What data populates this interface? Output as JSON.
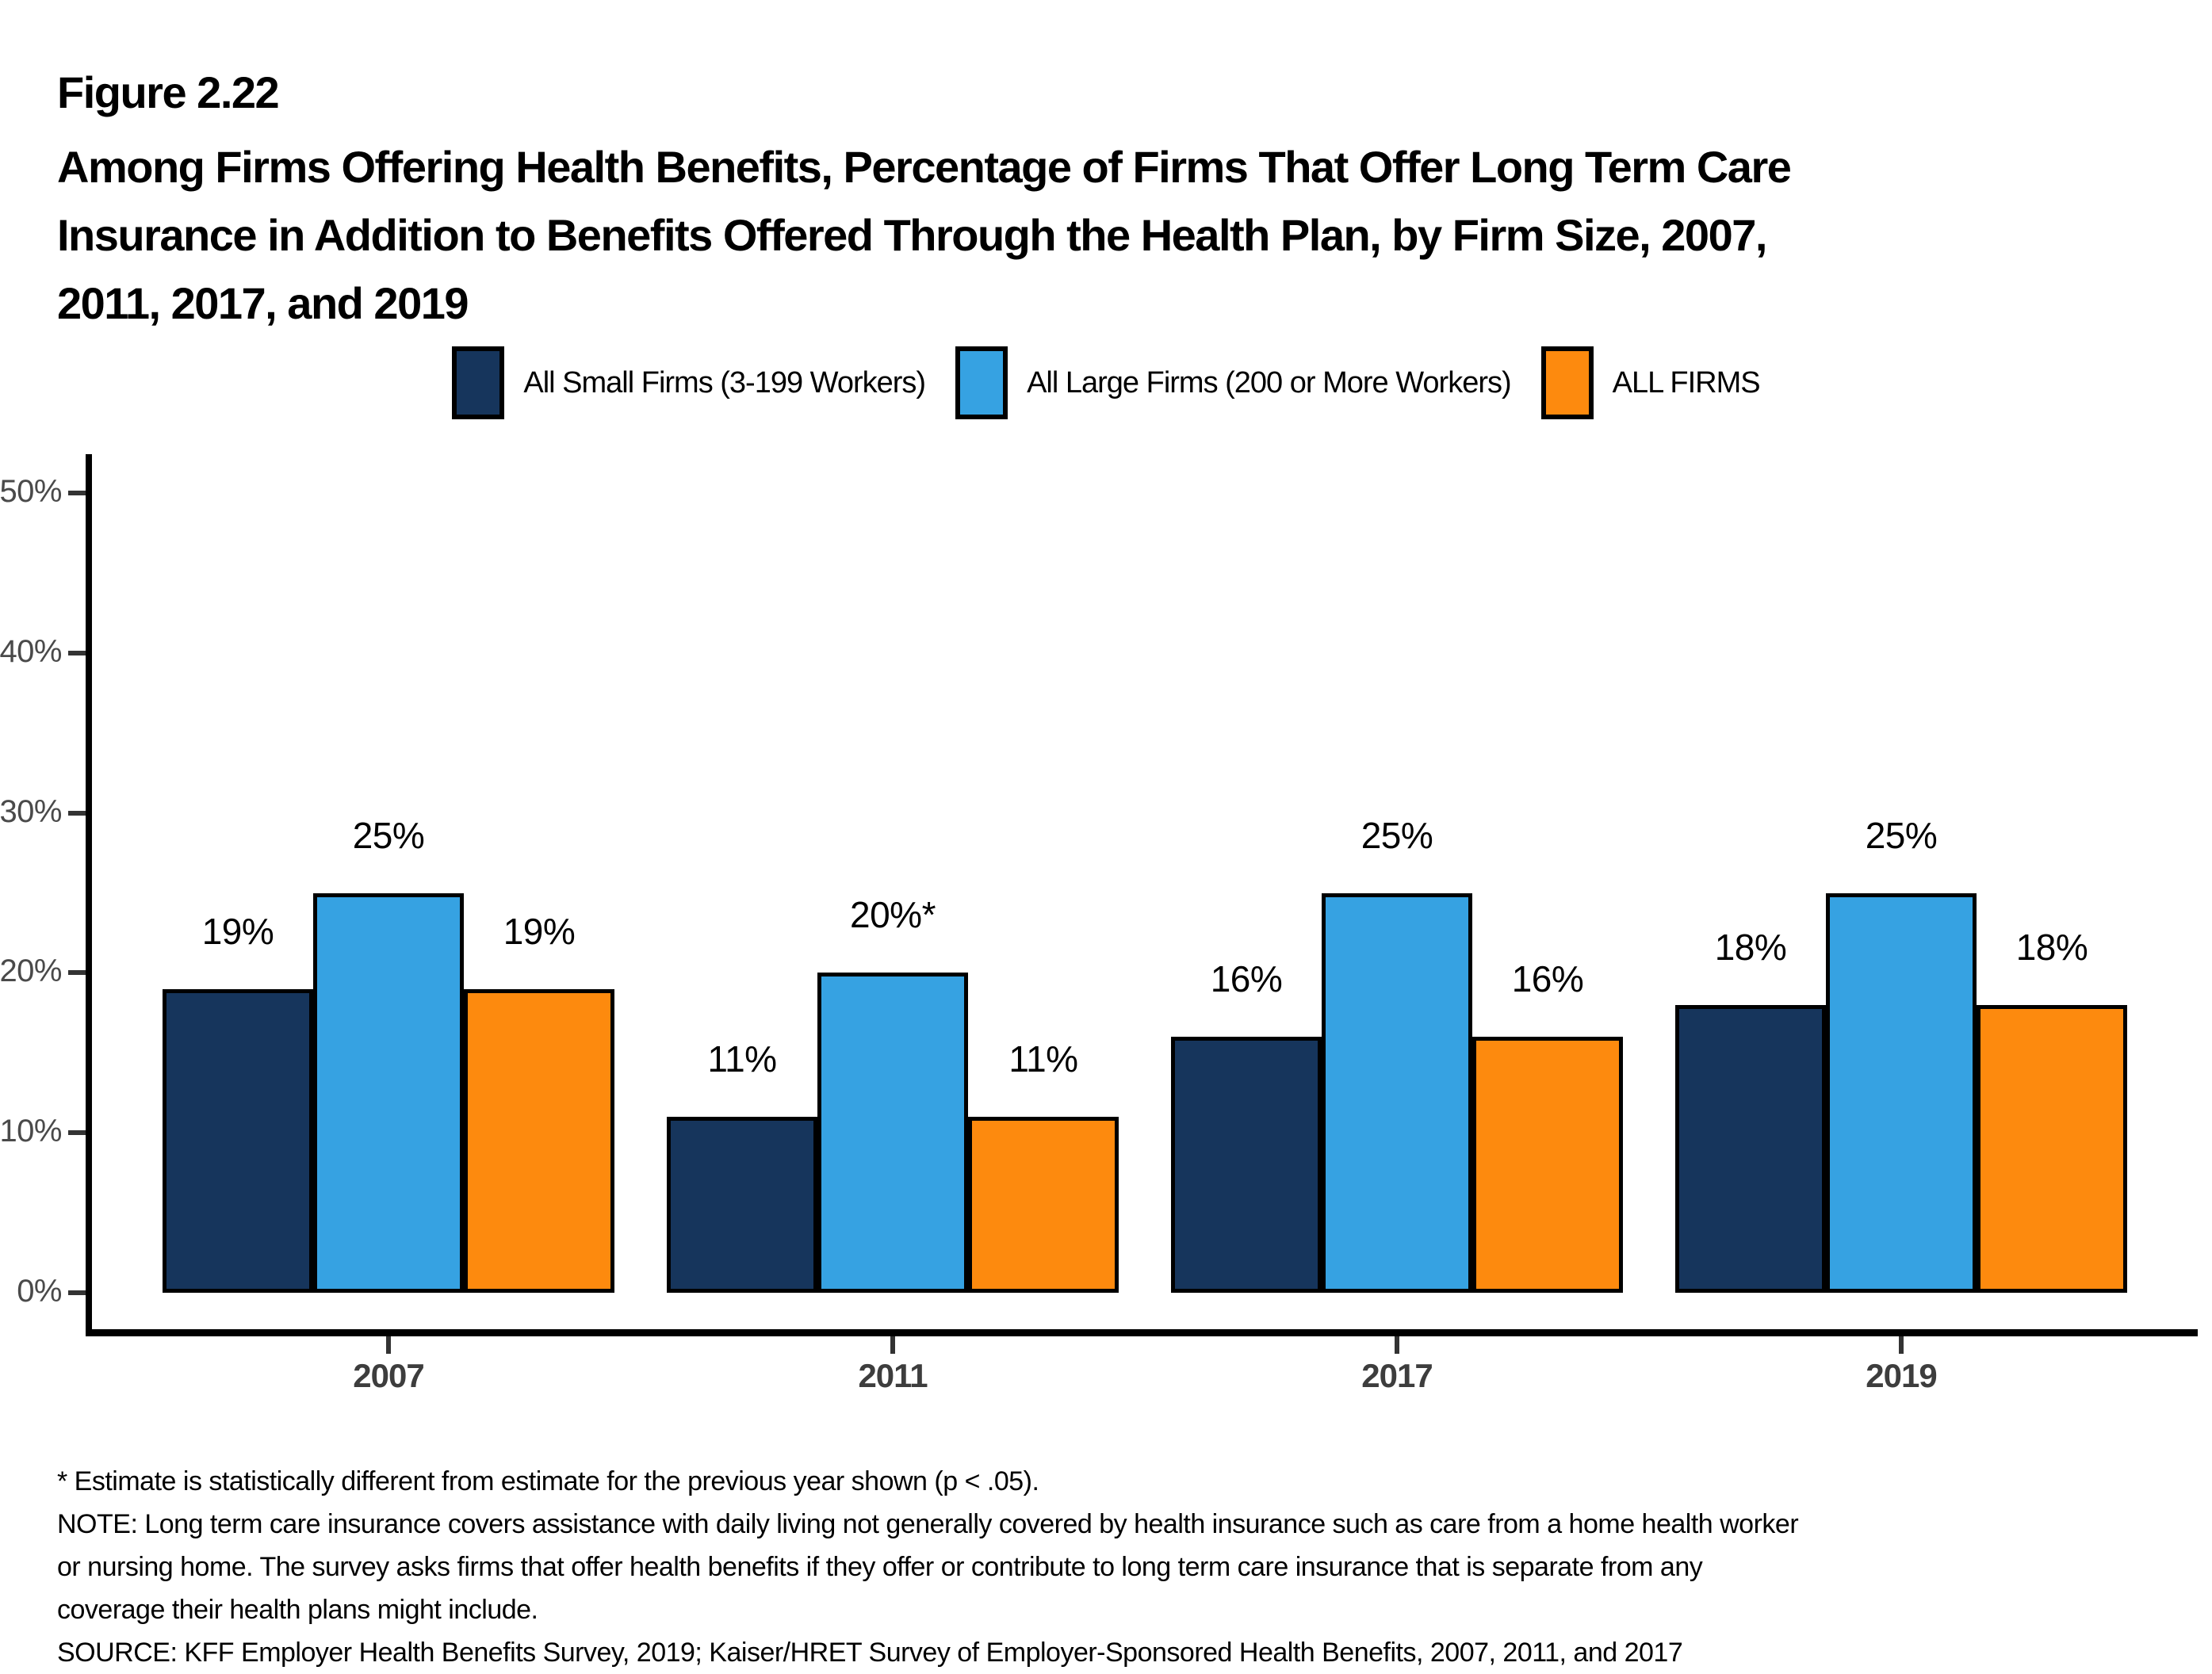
{
  "figure": {
    "label": "Figure 2.22",
    "title_lines": [
      "Among Firms Offering Health Benefits, Percentage of Firms That Offer Long Term Care",
      "Insurance in Addition to Benefits Offered Through the Health Plan, by Firm Size, 2007,",
      "2011, 2017, and 2019"
    ]
  },
  "chart_data": {
    "type": "bar",
    "title": "Among Firms Offering Health Benefits, Percentage of Firms That Offer Long Term Care Insurance in Addition to Benefits Offered Through the Health Plan, by Firm Size, 2007, 2011, 2017, and 2019",
    "categories": [
      "2007",
      "2011",
      "2017",
      "2019"
    ],
    "series": [
      {
        "name": "All Small Firms (3-199 Workers)",
        "color": "#16355C",
        "values": [
          19,
          11,
          16,
          18
        ]
      },
      {
        "name": "All Large Firms (200 or More Workers)",
        "color": "#36A2E2",
        "values": [
          25,
          20,
          25,
          25
        ]
      },
      {
        "name": "ALL FIRMS",
        "color": "#FD8A0E",
        "values": [
          19,
          11,
          16,
          18
        ]
      }
    ],
    "bar_labels": [
      [
        "19%",
        "25%",
        "19%"
      ],
      [
        "11%",
        "20%*",
        "11%"
      ],
      [
        "16%",
        "25%",
        "16%"
      ],
      [
        "18%",
        "25%",
        "18%"
      ]
    ],
    "yticks": [
      "0%",
      "10%",
      "20%",
      "30%",
      "40%",
      "50%"
    ],
    "ytick_values": [
      0,
      10,
      20,
      30,
      40,
      50
    ],
    "ylim": [
      0,
      50
    ],
    "xlabel": "",
    "ylabel": "",
    "grid": false,
    "legend_position": "top"
  },
  "colors": {
    "small_firms": "#16355C",
    "large_firms": "#36A2E2",
    "all_firms": "#FD8A0E",
    "axis": "#000000",
    "tick_label": "#4A4A4A"
  },
  "footnotes": {
    "lines": [
      "* Estimate is statistically different from estimate for the previous year shown (p < .05).",
      "NOTE: Long term care insurance covers assistance with daily living not generally covered by health insurance such as care from a home health worker",
      "or nursing home. The survey asks firms that offer health benefits if they offer or contribute to long term care insurance that is separate from any",
      "coverage their health plans might include.",
      "SOURCE: KFF Employer Health Benefits Survey, 2019; Kaiser/HRET Survey of Employer-Sponsored Health Benefits, 2007, 2011, and 2017"
    ]
  }
}
